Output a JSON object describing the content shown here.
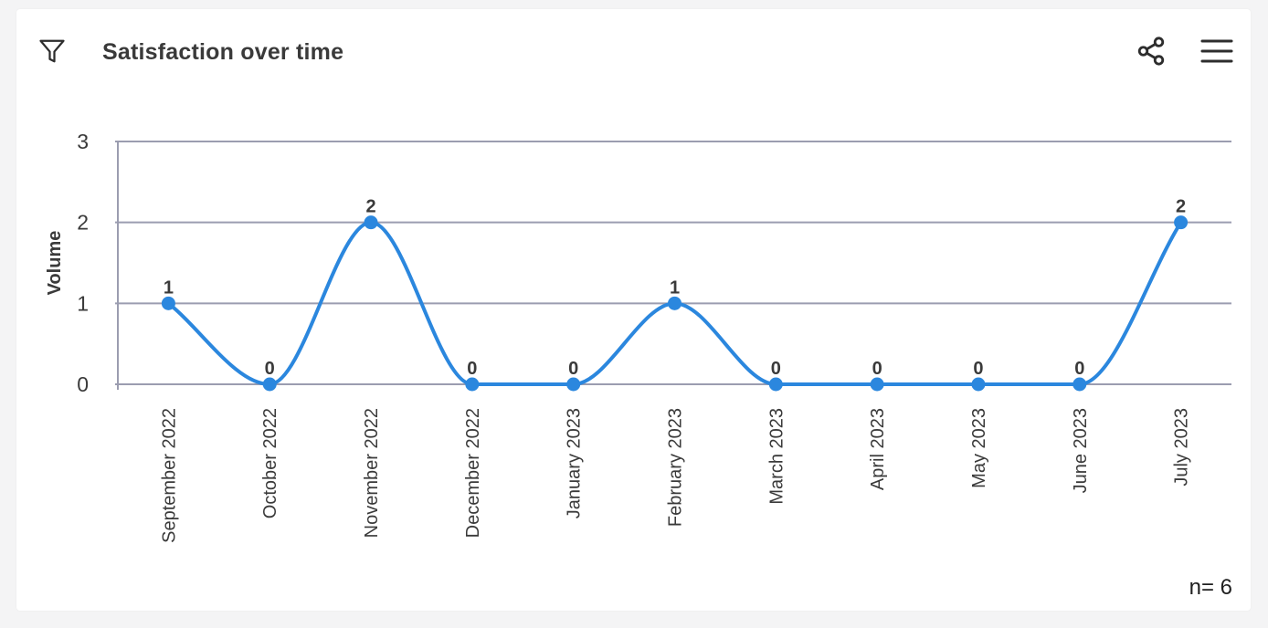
{
  "header": {
    "title": "Satisfaction over time",
    "icons": {
      "filter": "filter-funnel-icon",
      "share": "share-nodes-icon",
      "menu": "hamburger-menu-icon"
    }
  },
  "chart_data": {
    "type": "line",
    "title": "Satisfaction over time",
    "categories": [
      "September 2022",
      "October 2022",
      "November 2022",
      "December 2022",
      "January 2023",
      "February 2023",
      "March 2023",
      "April 2023",
      "May 2023",
      "June 2023",
      "July 2023"
    ],
    "values": [
      1,
      0,
      2,
      0,
      0,
      1,
      0,
      0,
      0,
      0,
      2
    ],
    "xlabel": "",
    "ylabel": "Volume",
    "yticks": [
      0,
      1,
      2,
      3
    ],
    "ylim": [
      0,
      3
    ],
    "grid": true,
    "legend": "none",
    "interpolation": "monotone",
    "point_labels_visible": true,
    "line_color": "#2b87de",
    "point_color": "#2b87de",
    "grid_color": "#9b9db0",
    "tick_label_color": "#3a3a3a",
    "value_label_color": "#3a3a3a",
    "axis_label_color": "#3a3a3a"
  },
  "footer": {
    "n_label": "n= 6"
  },
  "colors": {
    "page_background": "#f4f4f5",
    "card_background": "#ffffff",
    "icon_color": "#2d2d2d"
  }
}
